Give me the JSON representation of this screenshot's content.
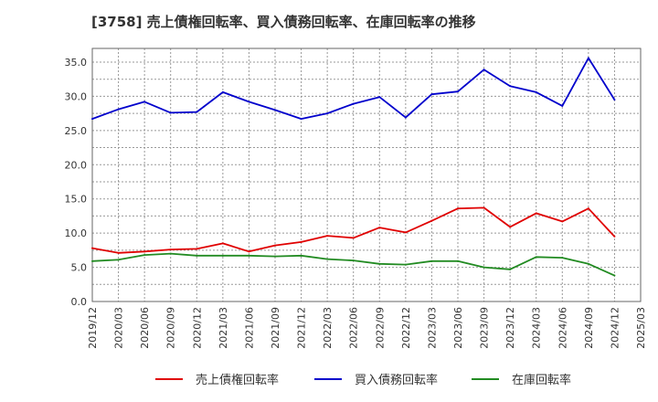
{
  "chart_data": {
    "type": "line",
    "title": "[3758]  売上債権回転率、買入債務回転率、在庫回転率の推移",
    "xlabel": "",
    "ylabel": "",
    "ylim": [
      0,
      37
    ],
    "yticks": [
      0.0,
      5.0,
      10.0,
      15.0,
      20.0,
      25.0,
      30.0,
      35.0
    ],
    "ytick_labels": [
      "0.0",
      "5.0",
      "10.0",
      "15.0",
      "20.0",
      "25.0",
      "30.0",
      "35.0"
    ],
    "xticks": [
      "2019/12",
      "2020/03",
      "2020/06",
      "2020/09",
      "2020/12",
      "2021/03",
      "2021/06",
      "2021/09",
      "2021/12",
      "2022/03",
      "2022/06",
      "2022/09",
      "2022/12",
      "2023/03",
      "2023/06",
      "2023/09",
      "2023/12",
      "2024/03",
      "2024/06",
      "2024/09",
      "2024/12",
      "2025/03"
    ],
    "grid": true,
    "legend_position": "bottom",
    "series": [
      {
        "name": "売上債権回転率",
        "color": "#e00000",
        "values": [
          7.8,
          7.1,
          7.3,
          7.6,
          7.7,
          8.5,
          7.3,
          8.2,
          8.7,
          9.6,
          9.3,
          10.8,
          10.1,
          11.8,
          13.6,
          13.7,
          10.9,
          12.9,
          11.7,
          13.6,
          9.5
        ]
      },
      {
        "name": "買入債務回転率",
        "color": "#0000cc",
        "values": [
          26.7,
          28.1,
          29.2,
          27.6,
          27.7,
          30.6,
          29.2,
          28.0,
          26.7,
          27.5,
          28.9,
          29.9,
          26.9,
          30.3,
          30.7,
          33.9,
          31.5,
          30.6,
          28.6,
          35.6,
          29.5
        ]
      },
      {
        "name": "在庫回転率",
        "color": "#228b22",
        "values": [
          5.9,
          6.1,
          6.8,
          7.0,
          6.7,
          6.7,
          6.7,
          6.6,
          6.7,
          6.2,
          6.0,
          5.5,
          5.4,
          5.9,
          5.9,
          5.0,
          4.7,
          6.5,
          6.4,
          5.5,
          3.8
        ]
      }
    ]
  }
}
